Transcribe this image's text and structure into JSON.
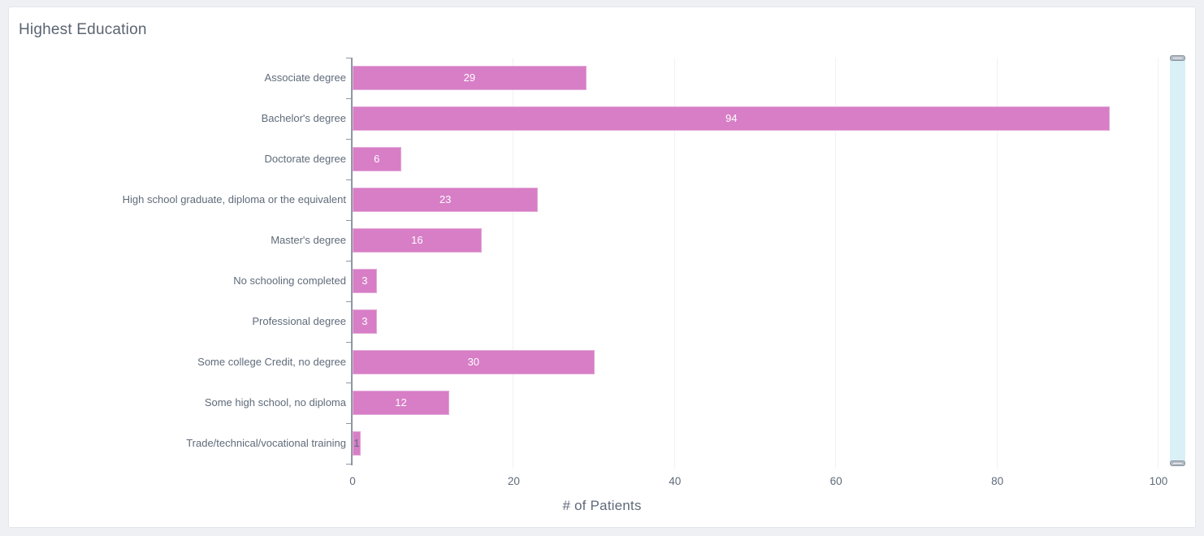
{
  "card": {
    "title": "Highest Education"
  },
  "chart_data": {
    "type": "bar",
    "orientation": "horizontal",
    "title": "Highest Education",
    "xlabel": "# of Patients",
    "ylabel": "",
    "categories": [
      "Associate degree",
      "Bachelor's degree",
      "Doctorate degree",
      "High school graduate, diploma or the equivalent",
      "Master's degree",
      "No schooling completed",
      "Professional degree",
      "Some college Credit, no degree",
      "Some high school, no diploma",
      "Trade/technical/vocational training"
    ],
    "values": [
      29,
      94,
      6,
      23,
      16,
      3,
      3,
      30,
      12,
      1
    ],
    "xlim": [
      0,
      100
    ],
    "xticks": [
      0,
      20,
      40,
      60,
      80,
      100
    ],
    "grid": "vertical-only",
    "legend": "none",
    "bar_labels_shown": true
  },
  "colors": {
    "bar": "#d77ec6",
    "bar_label": "#ffffff",
    "small_label": "#5f6b7a",
    "title_text": "#5b6471",
    "axis_text": "#5f6b7a",
    "gridline": "#f0f1f3",
    "axis_line": "#8f97a1",
    "scroll_track": "#d9f0f7",
    "scroll_handle": "#b4bcc4",
    "page_bg": "#eef0f3",
    "card_bg": "#ffffff",
    "card_border": "#e2e5ea"
  }
}
